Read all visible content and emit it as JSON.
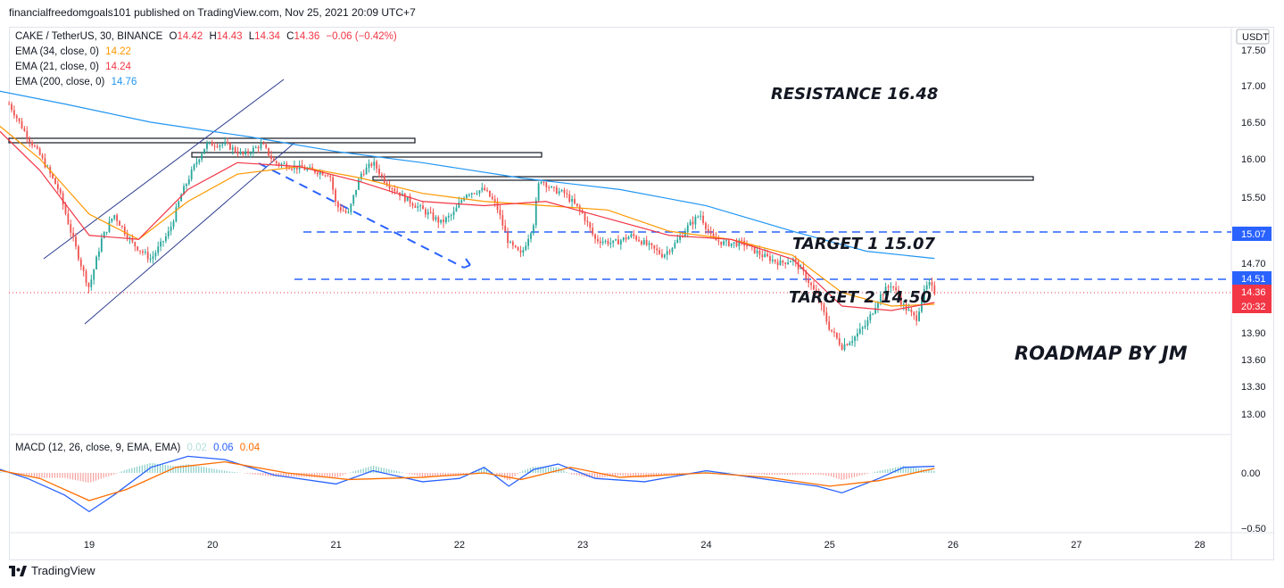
{
  "published": "financialfreedomgoals101 published on TradingView.com, Nov 25, 2021 20:09 UTC+7",
  "footer": {
    "brand": "TradingView"
  },
  "legend": {
    "symbol": "CAKE / TetherUS, 30, BINANCE",
    "o_label": "O",
    "o": "14.42",
    "h_label": "H",
    "h": "14.43",
    "l_label": "L",
    "l": "14.34",
    "c_label": "C",
    "c": "14.36",
    "change": "−0.06 (−0.42%)",
    "ema34_label": "EMA (34, close, 0)",
    "ema34": "14.22",
    "ema21_label": "EMA (21, close, 0)",
    "ema21": "14.24",
    "ema200_label": "EMA (200, close, 0)",
    "ema200": "14.76",
    "macd_label": "MACD (12, 26, close, 9, EMA, EMA)",
    "macd_v1": "0.02",
    "macd_v2": "0.06",
    "macd_v3": "0.04"
  },
  "currency_badge": "USDT",
  "price_tags": [
    {
      "value": "15.07",
      "color": "#2962ff"
    },
    {
      "value": "14.51",
      "color": "#2962ff"
    },
    {
      "value": "14.36",
      "color": "#f23645"
    },
    {
      "value": "20:32",
      "color": "#f23645"
    }
  ],
  "annotations": {
    "resistance": "RESISTANCE 16.48",
    "target1": "TARGET 1  15.07",
    "target2": "TARGET 2  14.50",
    "roadmap": "ROADMAP BY JM"
  },
  "colors": {
    "up": "#26a69a",
    "down": "#ef5350",
    "ema34": "#ff9800",
    "ema21": "#f23645",
    "ema200": "#2196f3",
    "macd": "#2962ff",
    "signal": "#ff6d00",
    "dash": "#2962ff"
  },
  "chart_data": {
    "type": "candlestick",
    "y_ticks": [
      17.5,
      17.0,
      16.5,
      16.0,
      15.5,
      14.7,
      13.9,
      13.6,
      13.3,
      13.0
    ],
    "y_tick_labels": [
      "17.50",
      "17.00",
      "16.50",
      "16.00",
      "15.50",
      "14.70",
      "13.90",
      "13.60",
      "13.30",
      "13.00"
    ],
    "x_ticks": [
      "19",
      "20",
      "21",
      "22",
      "23",
      "24",
      "25",
      "26",
      "27",
      "28"
    ],
    "macd_ticks": [
      0.0,
      -0.5
    ],
    "macd_tick_labels": [
      "0.00",
      "−0.50"
    ],
    "levels": {
      "target1": 15.07,
      "target2": 14.5,
      "current": 14.36
    },
    "path": [
      [
        18.35,
        16.75
      ],
      [
        18.5,
        16.3
      ],
      [
        18.6,
        16.05
      ],
      [
        18.75,
        15.6
      ],
      [
        18.85,
        15.1
      ],
      [
        18.95,
        14.6
      ],
      [
        19.0,
        14.4
      ],
      [
        19.1,
        15.0
      ],
      [
        19.2,
        15.3
      ],
      [
        19.35,
        14.95
      ],
      [
        19.5,
        14.75
      ],
      [
        19.65,
        15.1
      ],
      [
        19.75,
        15.55
      ],
      [
        19.85,
        15.9
      ],
      [
        19.95,
        16.2
      ],
      [
        20.1,
        16.2
      ],
      [
        20.25,
        16.05
      ],
      [
        20.4,
        16.2
      ],
      [
        20.5,
        15.95
      ],
      [
        20.65,
        15.9
      ],
      [
        20.8,
        15.85
      ],
      [
        20.95,
        15.8
      ],
      [
        21.0,
        15.4
      ],
      [
        21.1,
        15.3
      ],
      [
        21.2,
        15.8
      ],
      [
        21.3,
        15.95
      ],
      [
        21.4,
        15.7
      ],
      [
        21.55,
        15.5
      ],
      [
        21.7,
        15.35
      ],
      [
        21.85,
        15.2
      ],
      [
        21.95,
        15.3
      ],
      [
        22.05,
        15.55
      ],
      [
        22.2,
        15.6
      ],
      [
        22.3,
        15.4
      ],
      [
        22.4,
        14.95
      ],
      [
        22.5,
        14.8
      ],
      [
        22.6,
        15.2
      ],
      [
        22.65,
        15.75
      ],
      [
        22.75,
        15.6
      ],
      [
        22.85,
        15.55
      ],
      [
        23.0,
        15.3
      ],
      [
        23.1,
        15.0
      ],
      [
        23.25,
        14.95
      ],
      [
        23.4,
        15.05
      ],
      [
        23.55,
        14.9
      ],
      [
        23.65,
        14.8
      ],
      [
        23.75,
        14.95
      ],
      [
        23.85,
        15.15
      ],
      [
        23.95,
        15.3
      ],
      [
        24.05,
        15.0
      ],
      [
        24.15,
        14.95
      ],
      [
        24.3,
        14.95
      ],
      [
        24.45,
        14.8
      ],
      [
        24.6,
        14.7
      ],
      [
        24.7,
        14.75
      ],
      [
        24.8,
        14.55
      ],
      [
        24.9,
        14.3
      ],
      [
        25.0,
        13.95
      ],
      [
        25.1,
        13.75
      ],
      [
        25.2,
        13.85
      ],
      [
        25.3,
        14.0
      ],
      [
        25.4,
        14.3
      ],
      [
        25.5,
        14.45
      ],
      [
        25.6,
        14.2
      ],
      [
        25.7,
        14.05
      ],
      [
        25.75,
        14.3
      ],
      [
        25.8,
        14.45
      ],
      [
        25.85,
        14.36
      ]
    ],
    "ema200": [
      [
        18.2,
        16.95
      ],
      [
        18.8,
        16.75
      ],
      [
        19.5,
        16.5
      ],
      [
        20.3,
        16.3
      ],
      [
        21.0,
        16.1
      ],
      [
        21.7,
        15.95
      ],
      [
        22.5,
        15.75
      ],
      [
        23.3,
        15.6
      ],
      [
        24.0,
        15.4
      ],
      [
        24.7,
        15.1
      ],
      [
        25.3,
        14.85
      ],
      [
        25.85,
        14.76
      ]
    ],
    "ema34": [
      [
        18.2,
        16.55
      ],
      [
        18.6,
        16.0
      ],
      [
        19.0,
        15.3
      ],
      [
        19.4,
        15.0
      ],
      [
        19.8,
        15.45
      ],
      [
        20.2,
        15.8
      ],
      [
        20.7,
        15.9
      ],
      [
        21.2,
        15.75
      ],
      [
        21.7,
        15.55
      ],
      [
        22.2,
        15.45
      ],
      [
        22.7,
        15.4
      ],
      [
        23.2,
        15.35
      ],
      [
        23.7,
        15.1
      ],
      [
        24.2,
        15.0
      ],
      [
        24.7,
        14.8
      ],
      [
        25.1,
        14.35
      ],
      [
        25.5,
        14.2
      ],
      [
        25.85,
        14.22
      ]
    ],
    "ema21": [
      [
        18.2,
        16.5
      ],
      [
        18.6,
        15.85
      ],
      [
        19.0,
        15.05
      ],
      [
        19.4,
        15.0
      ],
      [
        19.8,
        15.6
      ],
      [
        20.2,
        15.95
      ],
      [
        20.7,
        15.9
      ],
      [
        21.2,
        15.7
      ],
      [
        21.7,
        15.45
      ],
      [
        22.2,
        15.4
      ],
      [
        22.7,
        15.45
      ],
      [
        23.2,
        15.25
      ],
      [
        23.7,
        15.05
      ],
      [
        24.2,
        15.0
      ],
      [
        24.7,
        14.75
      ],
      [
        25.1,
        14.2
      ],
      [
        25.5,
        14.15
      ],
      [
        25.85,
        14.24
      ]
    ],
    "macd_line": [
      [
        18.2,
        0.06
      ],
      [
        18.5,
        -0.05
      ],
      [
        18.8,
        -0.2
      ],
      [
        19.0,
        -0.35
      ],
      [
        19.2,
        -0.2
      ],
      [
        19.5,
        0.05
      ],
      [
        19.8,
        0.15
      ],
      [
        20.1,
        0.12
      ],
      [
        20.5,
        -0.02
      ],
      [
        21.0,
        -0.1
      ],
      [
        21.3,
        0.02
      ],
      [
        21.7,
        -0.08
      ],
      [
        22.0,
        -0.05
      ],
      [
        22.2,
        0.05
      ],
      [
        22.4,
        -0.12
      ],
      [
        22.6,
        0.03
      ],
      [
        22.8,
        0.08
      ],
      [
        23.1,
        -0.05
      ],
      [
        23.5,
        -0.08
      ],
      [
        24.0,
        0.02
      ],
      [
        24.5,
        -0.06
      ],
      [
        24.9,
        -0.12
      ],
      [
        25.1,
        -0.18
      ],
      [
        25.4,
        -0.05
      ],
      [
        25.6,
        0.05
      ],
      [
        25.85,
        0.06
      ]
    ],
    "macd_signal": [
      [
        18.2,
        0.04
      ],
      [
        18.6,
        -0.05
      ],
      [
        19.0,
        -0.25
      ],
      [
        19.3,
        -0.15
      ],
      [
        19.7,
        0.05
      ],
      [
        20.1,
        0.1
      ],
      [
        20.6,
        0.0
      ],
      [
        21.1,
        -0.06
      ],
      [
        21.7,
        -0.04
      ],
      [
        22.2,
        0.0
      ],
      [
        22.5,
        -0.06
      ],
      [
        22.9,
        0.05
      ],
      [
        23.3,
        -0.04
      ],
      [
        24.0,
        0.0
      ],
      [
        24.5,
        -0.04
      ],
      [
        25.0,
        -0.12
      ],
      [
        25.4,
        -0.07
      ],
      [
        25.85,
        0.04
      ]
    ]
  }
}
